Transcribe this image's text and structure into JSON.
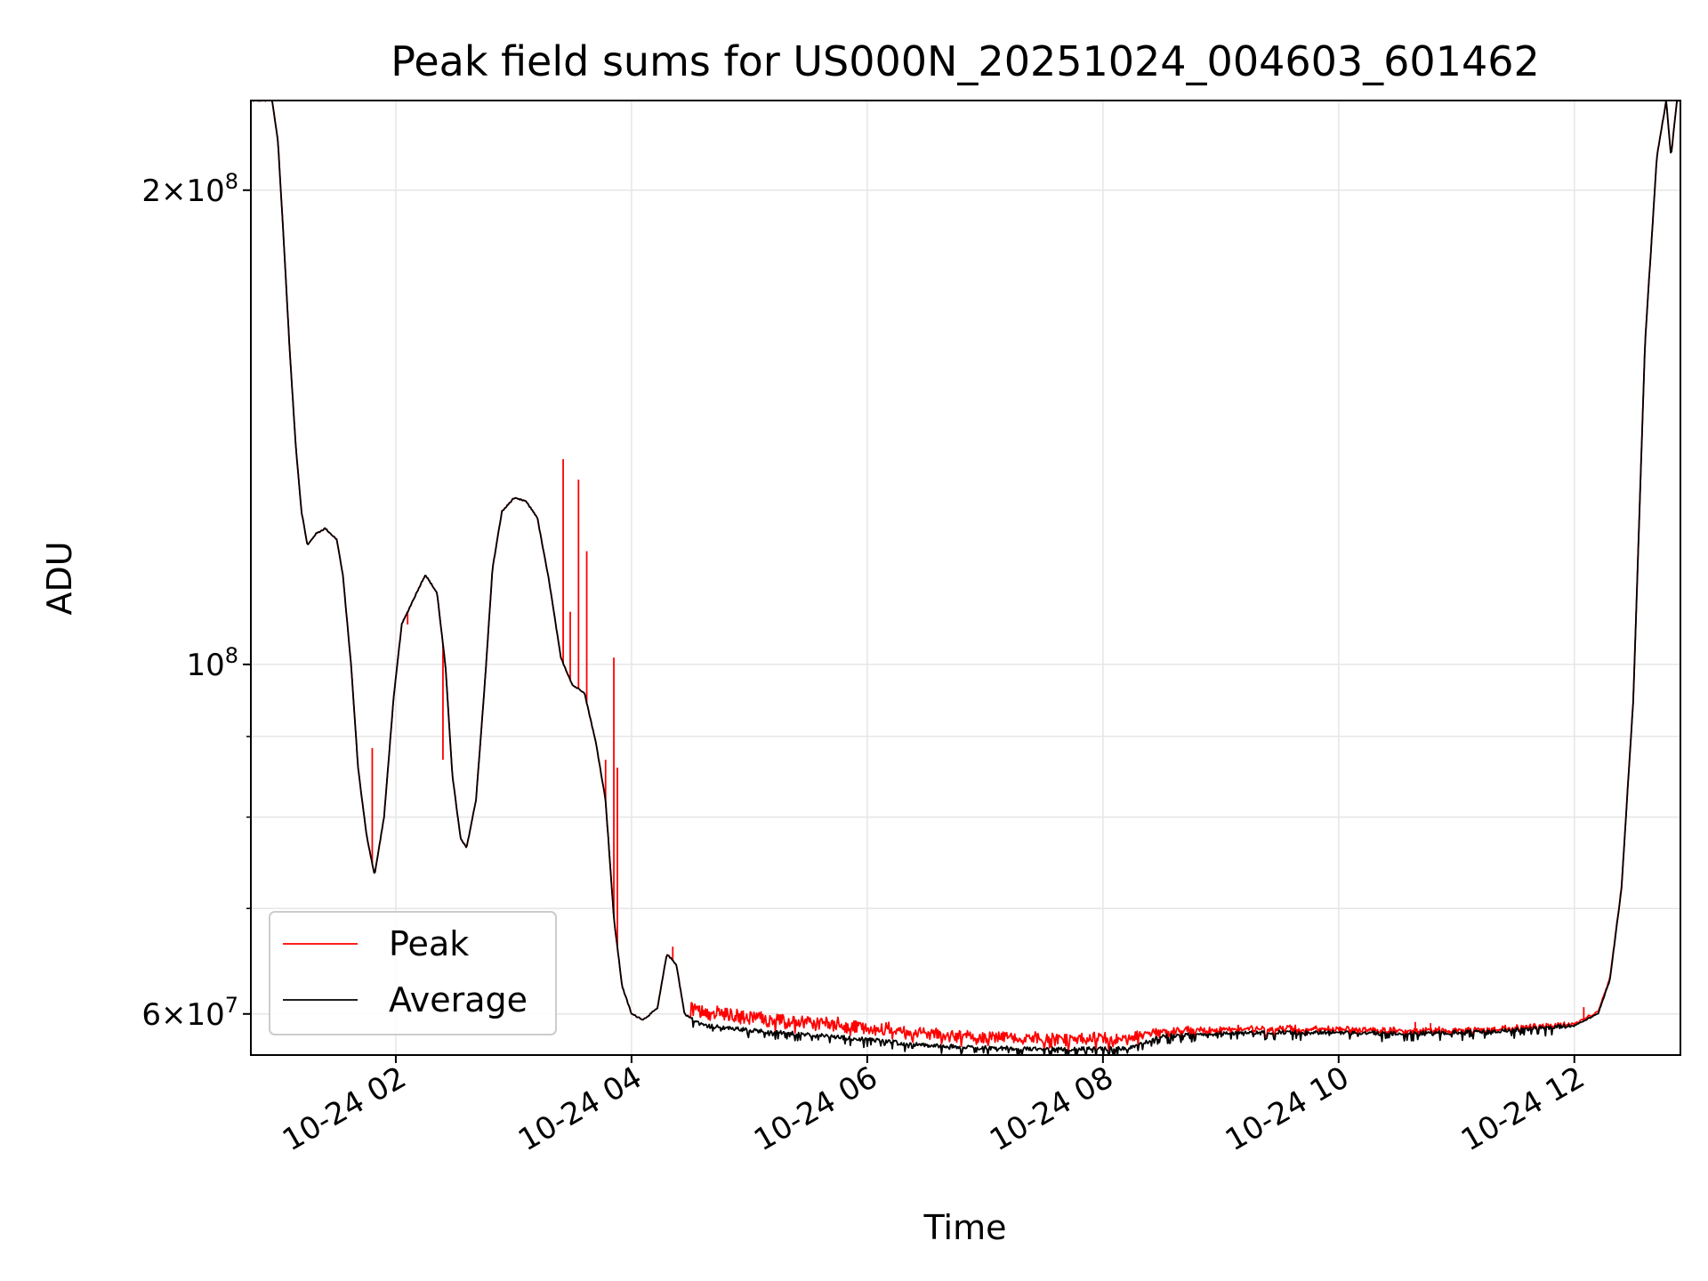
{
  "chart_data": {
    "type": "line",
    "title": "Peak field sums for US000N_20251024_004603_601462",
    "xlabel": "Time",
    "ylabel": "ADU",
    "y_scale": "log",
    "x_range_hours": [
      0.77,
      12.9
    ],
    "ylim": [
      56500000,
      228000000
    ],
    "grid": true,
    "x_ticks": [
      {
        "hour": 2,
        "label": "10-24 02"
      },
      {
        "hour": 4,
        "label": "10-24 04"
      },
      {
        "hour": 6,
        "label": "10-24 06"
      },
      {
        "hour": 8,
        "label": "10-24 08"
      },
      {
        "hour": 10,
        "label": "10-24 10"
      },
      {
        "hour": 12,
        "label": "10-24 12"
      }
    ],
    "y_major_ticks": [
      {
        "value": 60000000,
        "mantissa": "6",
        "exp": "7"
      },
      {
        "value": 100000000,
        "mantissa": "",
        "exp": "8"
      },
      {
        "value": 200000000,
        "mantissa": "2",
        "exp": "8"
      }
    ],
    "y_minor_grid": [
      70000000,
      80000000,
      90000000
    ],
    "legend": {
      "position": "lower-left",
      "entries": [
        {
          "label": "Peak",
          "color": "#ff0000"
        },
        {
          "label": "Average",
          "color": "#000000"
        }
      ]
    },
    "series": [
      {
        "name": "Average",
        "color": "#000000",
        "points": [
          [
            0.77,
            228000000
          ],
          [
            0.95,
            228000000
          ],
          [
            1.0,
            215000000
          ],
          [
            1.05,
            185000000
          ],
          [
            1.1,
            158000000
          ],
          [
            1.15,
            138000000
          ],
          [
            1.2,
            125000000
          ],
          [
            1.25,
            119000000
          ],
          [
            1.32,
            121000000
          ],
          [
            1.4,
            122000000
          ],
          [
            1.5,
            120000000
          ],
          [
            1.55,
            114000000
          ],
          [
            1.62,
            100000000
          ],
          [
            1.68,
            86000000
          ],
          [
            1.75,
            78000000
          ],
          [
            1.82,
            73500000
          ],
          [
            1.9,
            80000000
          ],
          [
            1.98,
            95000000
          ],
          [
            2.05,
            106000000
          ],
          [
            2.15,
            110000000
          ],
          [
            2.25,
            114000000
          ],
          [
            2.35,
            111000000
          ],
          [
            2.42,
            100000000
          ],
          [
            2.48,
            85000000
          ],
          [
            2.55,
            77500000
          ],
          [
            2.6,
            76500000
          ],
          [
            2.68,
            82000000
          ],
          [
            2.75,
            96000000
          ],
          [
            2.82,
            115000000
          ],
          [
            2.9,
            125000000
          ],
          [
            3.0,
            127500000
          ],
          [
            3.1,
            127000000
          ],
          [
            3.2,
            124000000
          ],
          [
            3.3,
            113000000
          ],
          [
            3.4,
            101000000
          ],
          [
            3.5,
            97000000
          ],
          [
            3.6,
            96000000
          ],
          [
            3.7,
            89000000
          ],
          [
            3.78,
            82000000
          ],
          [
            3.85,
            69000000
          ],
          [
            3.92,
            62500000
          ],
          [
            4.0,
            60000000
          ],
          [
            4.1,
            59500000
          ],
          [
            4.22,
            60500000
          ],
          [
            4.3,
            65500000
          ],
          [
            4.38,
            64500000
          ],
          [
            4.45,
            60000000
          ],
          [
            4.6,
            59000000
          ],
          [
            5.0,
            58600000
          ],
          [
            5.5,
            58200000
          ],
          [
            6.0,
            57800000
          ],
          [
            6.5,
            57300000
          ],
          [
            7.0,
            57100000
          ],
          [
            7.5,
            57000000
          ],
          [
            8.0,
            57000000
          ],
          [
            8.25,
            57100000
          ],
          [
            8.5,
            58100000
          ],
          [
            9.0,
            58300000
          ],
          [
            9.5,
            58400000
          ],
          [
            10.0,
            58400000
          ],
          [
            10.5,
            58300000
          ],
          [
            11.0,
            58400000
          ],
          [
            11.5,
            58600000
          ],
          [
            12.0,
            59000000
          ],
          [
            12.2,
            60000000
          ],
          [
            12.3,
            63000000
          ],
          [
            12.4,
            72000000
          ],
          [
            12.5,
            95000000
          ],
          [
            12.6,
            160000000
          ],
          [
            12.7,
            210000000
          ],
          [
            12.78,
            228000000
          ],
          [
            12.82,
            210000000
          ],
          [
            12.87,
            228000000
          ],
          [
            12.9,
            228000000
          ]
        ]
      },
      {
        "name": "Peak",
        "color": "#ff0000",
        "follows": "Average",
        "level_offsets": [
          [
            4.5,
            1200000
          ],
          [
            8.3,
            800000
          ],
          [
            8.6,
            400000
          ],
          [
            12.0,
            150000
          ]
        ],
        "spikes": [
          [
            1.8,
            88500000
          ],
          [
            2.1,
            106000000
          ],
          [
            2.4,
            87000000
          ],
          [
            3.42,
            135000000
          ],
          [
            3.48,
            108000000
          ],
          [
            3.55,
            131000000
          ],
          [
            3.62,
            118000000
          ],
          [
            3.78,
            87000000
          ],
          [
            3.85,
            101000000
          ],
          [
            3.88,
            86000000
          ],
          [
            4.35,
            66200000
          ],
          [
            8.3,
            57900000
          ],
          [
            8.45,
            58600000
          ],
          [
            9.15,
            59000000
          ],
          [
            10.65,
            59300000
          ],
          [
            10.78,
            59200000
          ],
          [
            12.08,
            60600000
          ]
        ]
      }
    ]
  }
}
